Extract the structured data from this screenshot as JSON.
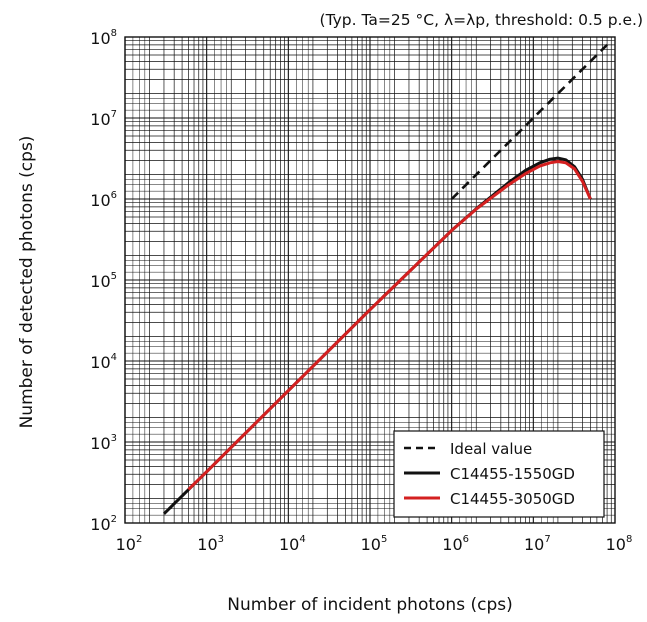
{
  "chart_data": {
    "type": "line",
    "title": "",
    "annotation": "(Typ. Ta=25 °C, λ=λp, threshold: 0.5 p.e.)",
    "xlabel": "Number of incident photons (cps)",
    "ylabel": "Number of detected photons (cps)",
    "x_scale": "log",
    "y_scale": "log",
    "xlim": [
      100,
      100000000
    ],
    "ylim": [
      100,
      100000000
    ],
    "grid": true,
    "legend_position": "bottom-right",
    "x_ticks": [
      {
        "base": "10",
        "exp": "2"
      },
      {
        "base": "10",
        "exp": "3"
      },
      {
        "base": "10",
        "exp": "4"
      },
      {
        "base": "10",
        "exp": "5"
      },
      {
        "base": "10",
        "exp": "6"
      },
      {
        "base": "10",
        "exp": "7"
      },
      {
        "base": "10",
        "exp": "8"
      }
    ],
    "y_ticks": [
      {
        "base": "10",
        "exp": "2"
      },
      {
        "base": "10",
        "exp": "3"
      },
      {
        "base": "10",
        "exp": "4"
      },
      {
        "base": "10",
        "exp": "5"
      },
      {
        "base": "10",
        "exp": "6"
      },
      {
        "base": "10",
        "exp": "7"
      },
      {
        "base": "10",
        "exp": "8"
      }
    ],
    "series": [
      {
        "name": "Ideal value",
        "color": "#111111",
        "style": "dashed",
        "x": [
          1000000,
          2000000,
          5000000,
          10000000,
          20000000,
          50000000,
          80000000
        ],
        "y": [
          1000000,
          2000000,
          5000000,
          10000000,
          20000000,
          50000000,
          80000000
        ]
      },
      {
        "name": "C14455-1550GD",
        "color": "#111111",
        "style": "solid",
        "x": [
          300,
          1000,
          10000,
          100000,
          1000000,
          2000000,
          5000000,
          8000000,
          12000000,
          16000000,
          20000000,
          25000000,
          32000000,
          40000000,
          50000000
        ],
        "y": [
          130,
          430,
          4300,
          43000,
          410000,
          760000,
          1600000,
          2250000,
          2800000,
          3100000,
          3200000,
          3050000,
          2500000,
          1750000,
          1000000
        ]
      },
      {
        "name": "C14455-3050GD",
        "color": "#d42020",
        "style": "solid",
        "x": [
          600,
          1000,
          10000,
          100000,
          1000000,
          2000000,
          5000000,
          8000000,
          12000000,
          16000000,
          20000000,
          25000000,
          32000000,
          40000000,
          50000000
        ],
        "y": [
          260,
          430,
          4300,
          43000,
          410000,
          750000,
          1500000,
          2050000,
          2550000,
          2800000,
          2900000,
          2800000,
          2350000,
          1650000,
          1000000
        ]
      }
    ]
  }
}
